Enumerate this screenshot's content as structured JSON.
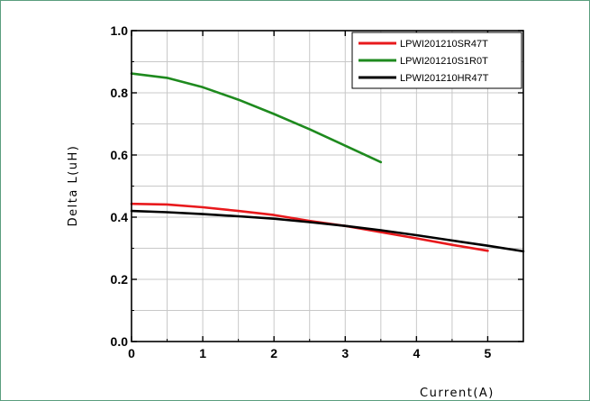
{
  "chart_data": {
    "type": "line",
    "xlabel": "Current(A)",
    "ylabel": "Delta L(uH)",
    "xlim": [
      0,
      5.5
    ],
    "ylim": [
      0,
      1.0
    ],
    "x_ticks": [
      "0",
      "1",
      "2",
      "3",
      "4",
      "5"
    ],
    "y_ticks": [
      "0.0",
      "0.2",
      "0.4",
      "0.6",
      "0.8",
      "1.0"
    ],
    "grid": true,
    "legend_position": "top-right",
    "series": [
      {
        "name": "LPWI201210SR47T",
        "color": "#e8191c",
        "points": [
          [
            0,
            0.443
          ],
          [
            0.5,
            0.441
          ],
          [
            1,
            0.432
          ],
          [
            1.5,
            0.42
          ],
          [
            2,
            0.407
          ],
          [
            2.5,
            0.388
          ],
          [
            3,
            0.372
          ],
          [
            3.5,
            0.352
          ],
          [
            4,
            0.332
          ],
          [
            4.5,
            0.311
          ],
          [
            5,
            0.292
          ]
        ]
      },
      {
        "name": "LPWI201210S1R0T",
        "color": "#1e8a1e",
        "points": [
          [
            0,
            0.862
          ],
          [
            0.5,
            0.848
          ],
          [
            1,
            0.818
          ],
          [
            1.5,
            0.778
          ],
          [
            2,
            0.732
          ],
          [
            2.5,
            0.683
          ],
          [
            3,
            0.63
          ],
          [
            3.5,
            0.577
          ]
        ]
      },
      {
        "name": "LPWI201210HR47T",
        "color": "#000000",
        "points": [
          [
            0,
            0.42
          ],
          [
            0.5,
            0.416
          ],
          [
            1,
            0.41
          ],
          [
            1.5,
            0.403
          ],
          [
            2,
            0.395
          ],
          [
            2.5,
            0.384
          ],
          [
            3,
            0.372
          ],
          [
            3.5,
            0.358
          ],
          [
            4,
            0.342
          ],
          [
            4.5,
            0.325
          ],
          [
            5,
            0.308
          ],
          [
            5.5,
            0.29
          ]
        ]
      }
    ]
  }
}
